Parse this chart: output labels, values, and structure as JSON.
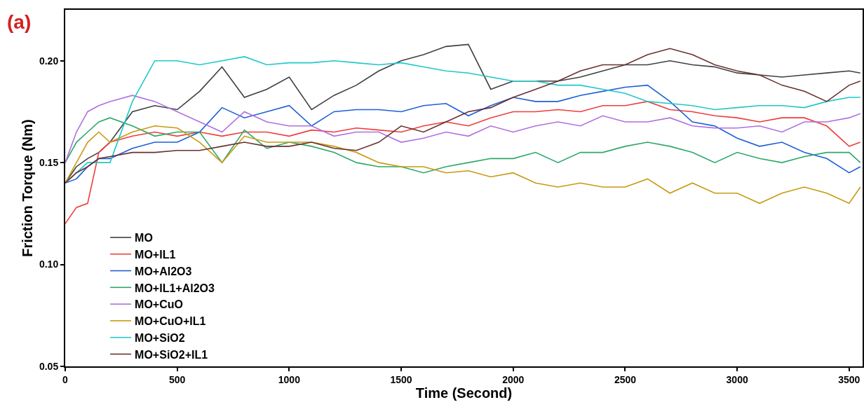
{
  "chart_data": {
    "type": "line",
    "annotations": [
      "(a)"
    ],
    "xlabel": "Time (Second)",
    "ylabel": "Friction Torque (Nm)",
    "x": [
      0,
      50,
      100,
      150,
      200,
      300,
      400,
      500,
      600,
      700,
      800,
      900,
      1000,
      1100,
      1200,
      1300,
      1400,
      1500,
      1600,
      1700,
      1800,
      1900,
      2000,
      2100,
      2200,
      2300,
      2400,
      2500,
      2600,
      2700,
      2800,
      2900,
      3000,
      3100,
      3200,
      3300,
      3400,
      3500,
      3550
    ],
    "xlim": [
      0,
      3560
    ],
    "xticks": [
      0,
      500,
      1000,
      1500,
      2000,
      2500,
      3000,
      3500
    ],
    "ylim": [
      0.05,
      0.225
    ],
    "yticks": [
      0.05,
      {
        "value": 0.1,
        "label": "0.10"
      },
      0.15,
      {
        "value": 0.2,
        "label": "0.20"
      }
    ],
    "legend": "bottom",
    "line_style": "solid",
    "marker": "none",
    "series": [
      {
        "name": "MO",
        "color": "#404040",
        "values": [
          0.14,
          0.148,
          0.152,
          0.155,
          0.16,
          0.175,
          0.178,
          0.176,
          0.185,
          0.197,
          0.182,
          0.186,
          0.192,
          0.176,
          0.183,
          0.188,
          0.195,
          0.2,
          0.203,
          0.207,
          0.208,
          0.186,
          0.19,
          0.19,
          0.19,
          0.192,
          0.195,
          0.198,
          0.198,
          0.2,
          0.198,
          0.197,
          0.194,
          0.193,
          0.192,
          0.193,
          0.194,
          0.195,
          0.194
        ]
      },
      {
        "name": "MO+IL1",
        "color": "#f03c3c",
        "values": [
          0.12,
          0.128,
          0.13,
          0.155,
          0.16,
          0.163,
          0.165,
          0.163,
          0.165,
          0.163,
          0.165,
          0.165,
          0.163,
          0.166,
          0.165,
          0.167,
          0.166,
          0.165,
          0.168,
          0.17,
          0.168,
          0.172,
          0.175,
          0.175,
          0.176,
          0.175,
          0.178,
          0.178,
          0.18,
          0.176,
          0.175,
          0.173,
          0.172,
          0.17,
          0.172,
          0.172,
          0.168,
          0.158,
          0.16
        ]
      },
      {
        "name": "MO+Al2O3",
        "color": "#1f5fd8",
        "values": [
          0.14,
          0.142,
          0.148,
          0.152,
          0.152,
          0.157,
          0.16,
          0.16,
          0.165,
          0.177,
          0.172,
          0.175,
          0.178,
          0.168,
          0.175,
          0.176,
          0.176,
          0.175,
          0.178,
          0.179,
          0.173,
          0.178,
          0.182,
          0.18,
          0.18,
          0.183,
          0.185,
          0.187,
          0.188,
          0.18,
          0.17,
          0.168,
          0.162,
          0.158,
          0.16,
          0.155,
          0.152,
          0.145,
          0.148
        ]
      },
      {
        "name": "MO+IL1+Al2O3",
        "color": "#2ca86a",
        "values": [
          0.15,
          0.16,
          0.165,
          0.17,
          0.172,
          0.168,
          0.163,
          0.165,
          0.165,
          0.15,
          0.166,
          0.157,
          0.16,
          0.158,
          0.155,
          0.15,
          0.148,
          0.148,
          0.145,
          0.148,
          0.15,
          0.152,
          0.152,
          0.155,
          0.15,
          0.155,
          0.155,
          0.158,
          0.16,
          0.158,
          0.155,
          0.15,
          0.155,
          0.152,
          0.15,
          0.153,
          0.155,
          0.155,
          0.15
        ]
      },
      {
        "name": "MO+CuO",
        "color": "#b070e0",
        "values": [
          0.15,
          0.165,
          0.175,
          0.178,
          0.18,
          0.183,
          0.18,
          0.175,
          0.17,
          0.165,
          0.175,
          0.17,
          0.168,
          0.168,
          0.163,
          0.165,
          0.165,
          0.16,
          0.162,
          0.165,
          0.163,
          0.168,
          0.165,
          0.168,
          0.17,
          0.168,
          0.173,
          0.17,
          0.17,
          0.172,
          0.168,
          0.167,
          0.167,
          0.168,
          0.165,
          0.17,
          0.17,
          0.172,
          0.174
        ]
      },
      {
        "name": "MO+CuO+IL1",
        "color": "#c89a10",
        "values": [
          0.14,
          0.15,
          0.16,
          0.165,
          0.16,
          0.165,
          0.168,
          0.167,
          0.16,
          0.15,
          0.163,
          0.16,
          0.16,
          0.16,
          0.158,
          0.155,
          0.15,
          0.148,
          0.148,
          0.145,
          0.146,
          0.143,
          0.145,
          0.14,
          0.138,
          0.14,
          0.138,
          0.138,
          0.142,
          0.135,
          0.14,
          0.135,
          0.135,
          0.13,
          0.135,
          0.138,
          0.135,
          0.13,
          0.138
        ]
      },
      {
        "name": "MO+SiO2",
        "color": "#20c8c8",
        "values": [
          0.14,
          0.145,
          0.15,
          0.15,
          0.15,
          0.18,
          0.2,
          0.2,
          0.198,
          0.2,
          0.202,
          0.198,
          0.199,
          0.199,
          0.2,
          0.199,
          0.198,
          0.199,
          0.197,
          0.195,
          0.194,
          0.192,
          0.19,
          0.19,
          0.188,
          0.188,
          0.186,
          0.184,
          0.18,
          0.179,
          0.178,
          0.176,
          0.177,
          0.178,
          0.178,
          0.177,
          0.18,
          0.182,
          0.182
        ]
      },
      {
        "name": "MO+SiO2+IL1",
        "color": "#6b3030",
        "values": [
          0.14,
          0.145,
          0.148,
          0.152,
          0.153,
          0.155,
          0.155,
          0.156,
          0.156,
          0.158,
          0.16,
          0.158,
          0.158,
          0.16,
          0.157,
          0.156,
          0.16,
          0.168,
          0.165,
          0.17,
          0.175,
          0.177,
          0.182,
          0.186,
          0.19,
          0.195,
          0.198,
          0.198,
          0.203,
          0.206,
          0.203,
          0.198,
          0.195,
          0.193,
          0.188,
          0.185,
          0.18,
          0.188,
          0.19
        ]
      }
    ]
  }
}
